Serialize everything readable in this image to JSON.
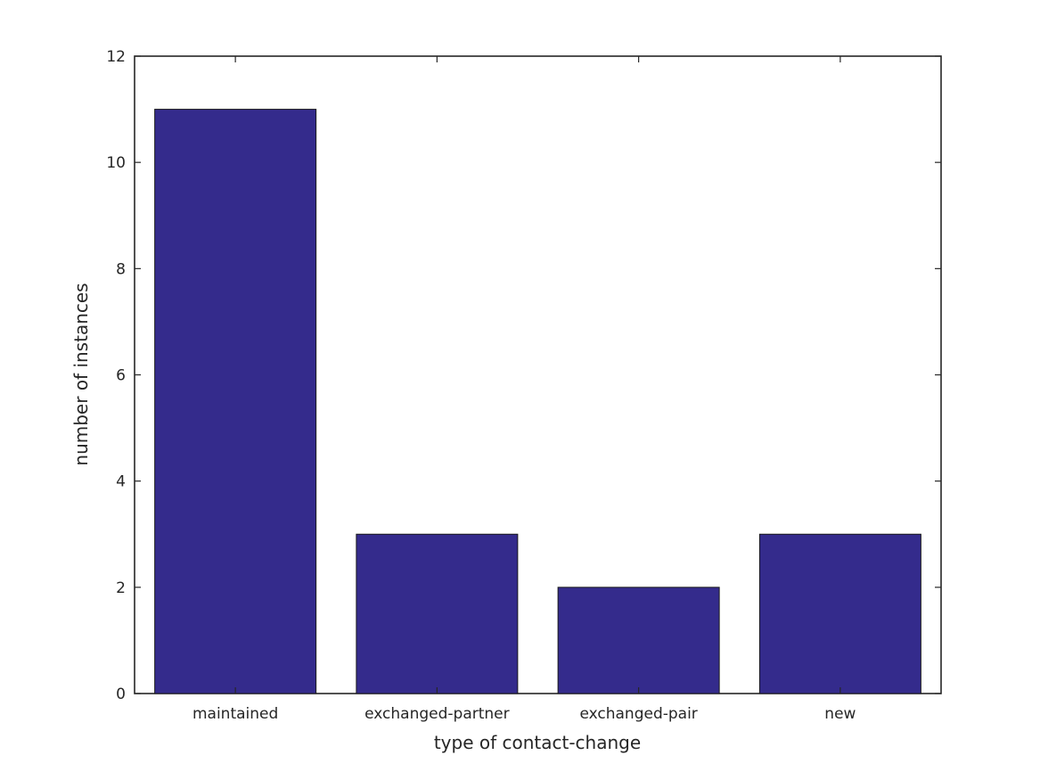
{
  "chart_data": {
    "type": "bar",
    "categories": [
      "maintained",
      "exchanged-partner",
      "exchanged-pair",
      "new"
    ],
    "values": [
      11,
      3,
      2,
      3
    ],
    "title": "",
    "xlabel": "type of contact-change",
    "ylabel": "number of instances",
    "ylim": [
      0,
      12
    ],
    "yticks": [
      0,
      2,
      4,
      6,
      8,
      10,
      12
    ],
    "grid": false,
    "legend_position": "none",
    "bar_width_fraction": 0.8,
    "tick_direction": "in",
    "ticks_on_all_sides": true,
    "colors": {
      "bar_fill": "#342b8c",
      "bar_edge": "#1a1a1a",
      "frame": "#262626",
      "text": "#262626",
      "background": "#ffffff"
    }
  }
}
